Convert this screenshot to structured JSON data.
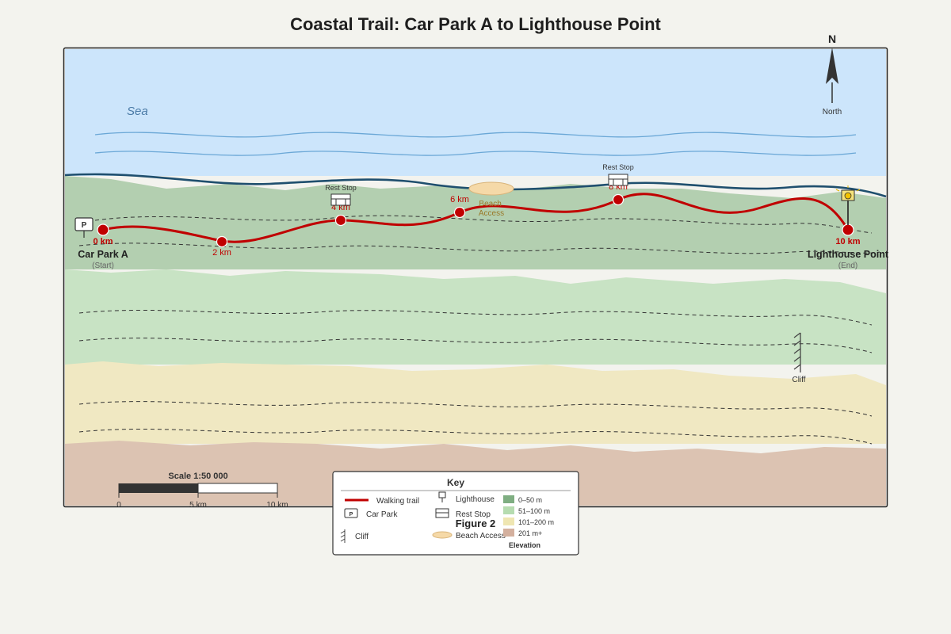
{
  "title": "Coastal Trail: Car Park A to Lighthouse Point",
  "figure_label": "Figure 2",
  "sea_label": "Sea",
  "compass": {
    "letter": "N",
    "label": "North"
  },
  "start": {
    "name": "Car Park A",
    "note": "(Start)",
    "icon": "P"
  },
  "end": {
    "name": "Lighthouse Point",
    "note": "(End)"
  },
  "distance_markers": [
    "0 km",
    "2 km",
    "4 km",
    "6 km",
    "8 km",
    "10 km"
  ],
  "rest_stops": [
    "Rest Stop",
    "Rest Stop"
  ],
  "beach_access": "Beach Access",
  "cliff_label": "Cliff",
  "scale": {
    "title": "Scale 1:50 000",
    "ticks": [
      "0",
      "5 km",
      "10 km"
    ]
  },
  "legend": {
    "title": "Key",
    "items": {
      "trail": "Walking trail",
      "car_park": "Car Park",
      "cliff": "Cliff",
      "lighthouse": "Lighthouse",
      "rest_stop": "Rest Stop",
      "beach": "Beach Access"
    },
    "elevation_title": "Elevation",
    "elevation_bands": [
      {
        "label": "0–50 m",
        "color": "#7fae82"
      },
      {
        "label": "51–100 m",
        "color": "#b6dcb0"
      },
      {
        "label": "101–200 m",
        "color": "#efe6b2"
      },
      {
        "label": "201 m+",
        "color": "#d4b09e"
      }
    ]
  },
  "colors": {
    "sea": "#cce5fb",
    "coastline": "#1f4f6e",
    "trail": "#c00000",
    "band_0_50": "#b3cfb0",
    "band_51_100": "#c8e3c4",
    "band_101_200": "#f0e8c2",
    "band_201": "#dcc3b2"
  }
}
